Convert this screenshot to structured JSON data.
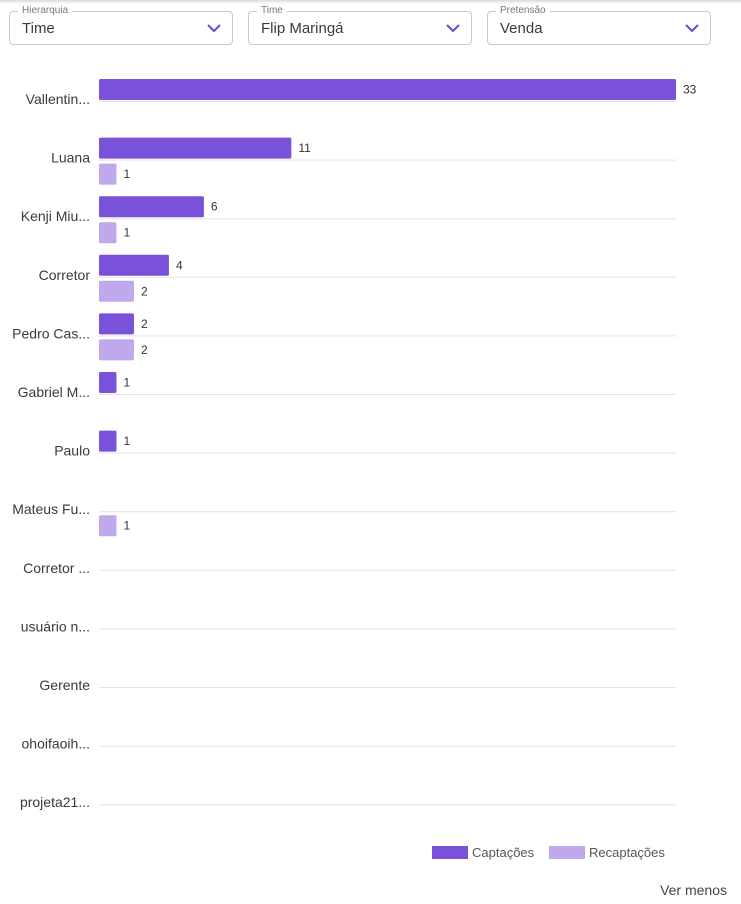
{
  "filters": {
    "hierarquia": {
      "label": "Hierarquia",
      "value": "Time"
    },
    "time": {
      "label": "Time",
      "value": "Flip Maringá"
    },
    "pretensao": {
      "label": "Pretensão",
      "value": "Venda"
    }
  },
  "chart_data": {
    "type": "bar",
    "orientation": "horizontal",
    "categories": [
      "Vallentin...",
      "Luana",
      "Kenji Miu...",
      "Corretor",
      "Pedro Cas...",
      "Gabriel M...",
      "Paulo",
      "Mateus Fu...",
      "Corretor ...",
      "usuário n...",
      "Gerente",
      "ohoifaoih...",
      "projeta21..."
    ],
    "series": [
      {
        "name": "Captações",
        "color": "#7a52d9",
        "values": [
          33,
          11,
          6,
          4,
          2,
          1,
          1,
          0,
          0,
          0,
          0,
          0,
          0
        ]
      },
      {
        "name": "Recaptações",
        "color": "#bfa8ec",
        "values": [
          0,
          1,
          1,
          2,
          2,
          0,
          0,
          1,
          0,
          0,
          0,
          0,
          0
        ]
      }
    ],
    "xlim": [
      0,
      33
    ],
    "legend": "bottom-right"
  },
  "footer": {
    "toggle_label": "Ver menos"
  },
  "colors": {
    "accent": "#6b48d6",
    "grid": "#e3e3e3"
  }
}
